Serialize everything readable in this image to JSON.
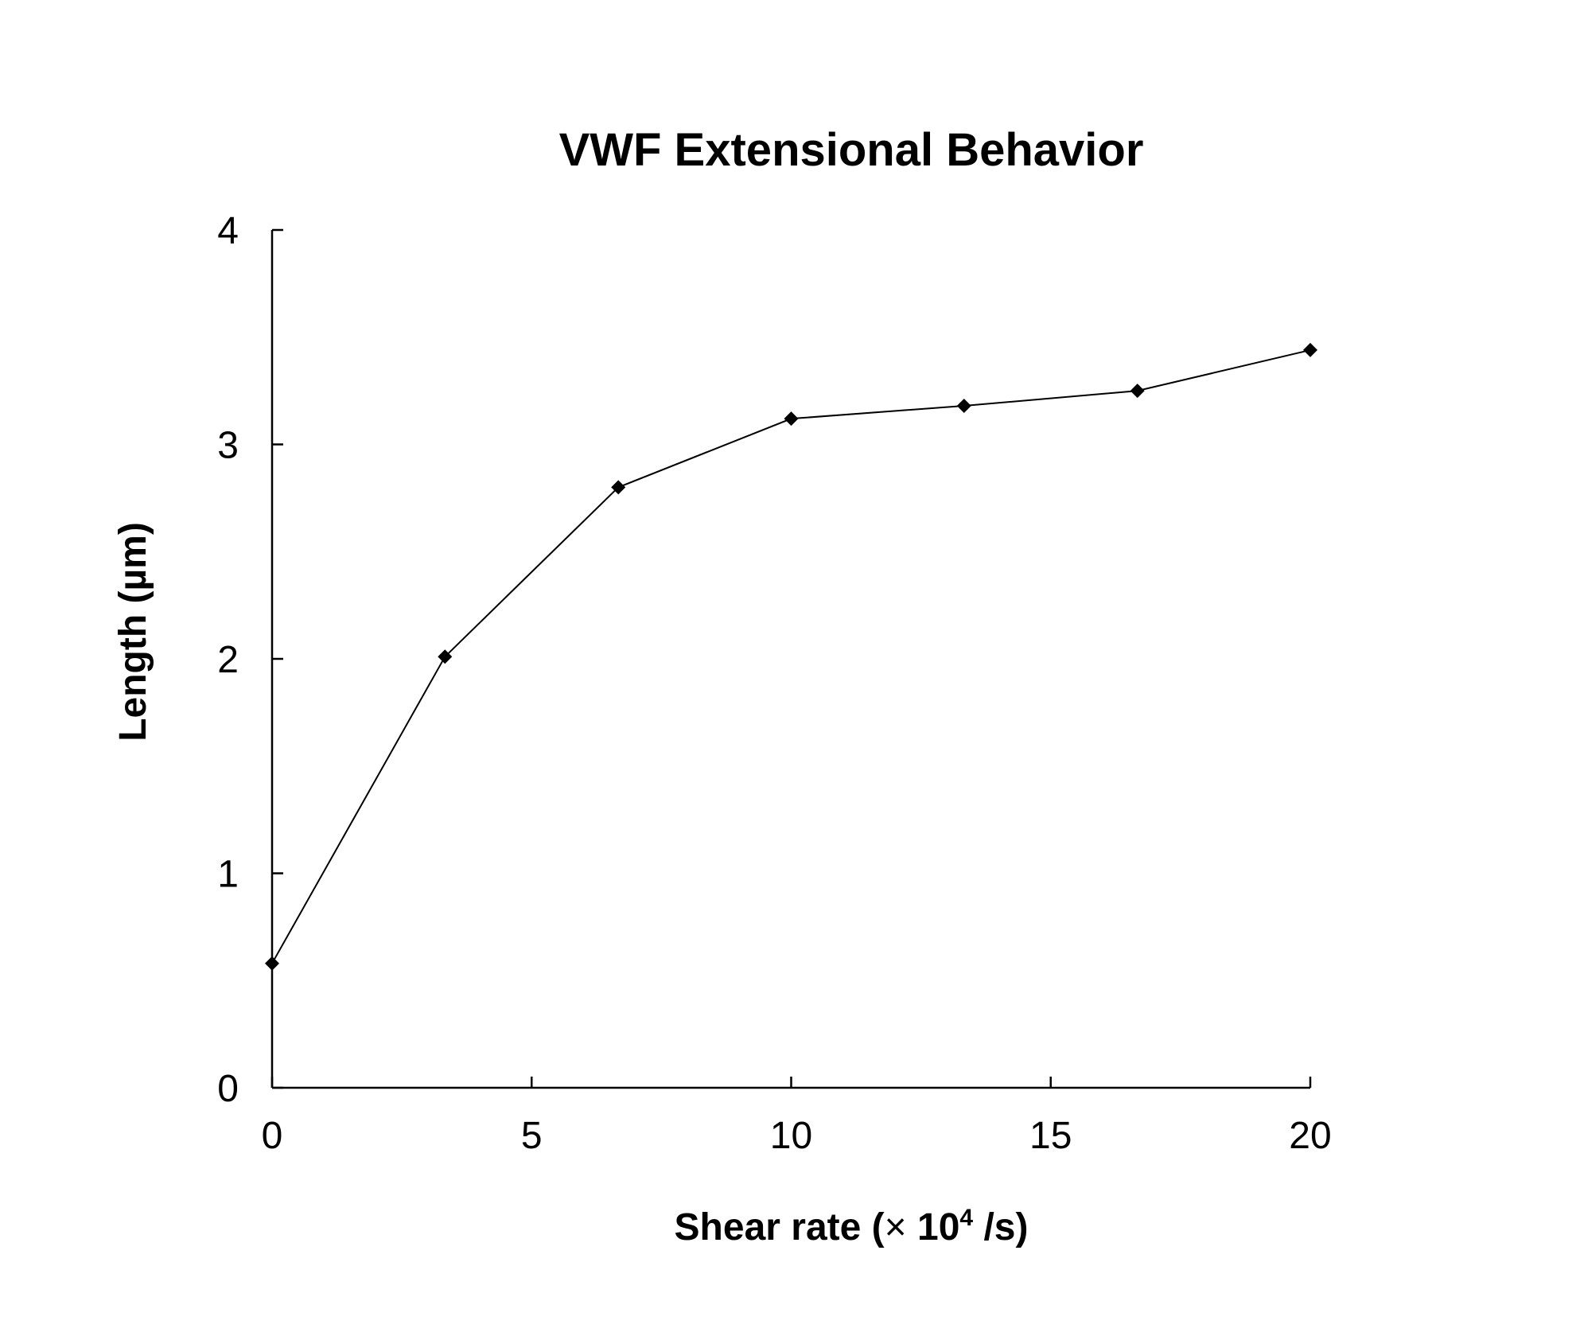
{
  "chart_data": {
    "type": "line",
    "title": "VWF Extensional Behavior",
    "xlabel_prefix": "Shear rate (",
    "xlabel_times": "×",
    "xlabel_base": " 10",
    "xlabel_exp": "4",
    "xlabel_suffix": " /s)",
    "ylabel": "Length (µm)",
    "xlim": [
      0,
      20
    ],
    "ylim": [
      0,
      4
    ],
    "xticks": [
      0,
      5,
      10,
      15,
      20
    ],
    "yticks": [
      0,
      1,
      2,
      3,
      4
    ],
    "grid": false,
    "marker": "diamond",
    "colors": {
      "line": "#000000",
      "marker": "#000000",
      "axis": "#000000"
    },
    "series": [
      {
        "x": [
          0,
          3.33,
          6.67,
          10,
          13.33,
          16.67,
          20
        ],
        "y": [
          0.58,
          2.01,
          2.8,
          3.12,
          3.18,
          3.25,
          3.44
        ]
      }
    ]
  }
}
